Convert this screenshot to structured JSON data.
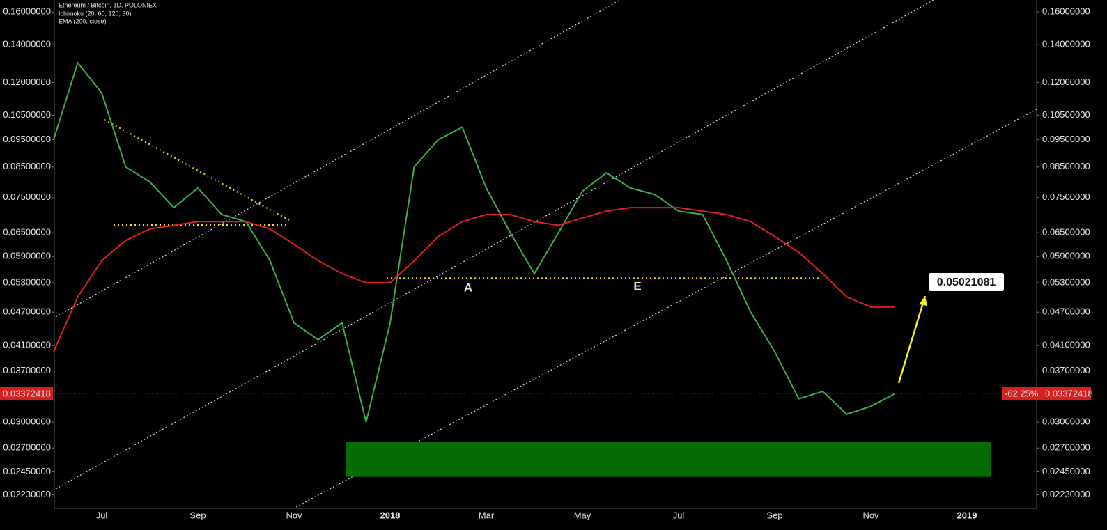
{
  "chart_data": {
    "type": "line",
    "indicators": [
      "Ichimoku (20, 60, 120, 30)"
    ],
    "log_scale": true,
    "grid": false,
    "categories": [
      null,
      null,
      "Jul",
      null,
      null,
      null,
      "Sep",
      null,
      null,
      null,
      "Nov",
      null,
      null,
      null,
      "2018",
      null,
      null,
      null,
      "Mar",
      null,
      null,
      null,
      "May",
      null,
      null,
      null,
      "Jul",
      null,
      null,
      null,
      "Sep",
      null,
      null,
      null,
      "Nov",
      null,
      null,
      null,
      "2019"
    ],
    "series": [
      {
        "name": "Ethereum / Bitcoin, 1D, POLONIEX",
        "color": "#3fae4a",
        "values": [
          0.095,
          0.13,
          0.115,
          0.085,
          0.08,
          0.072,
          0.078,
          0.07,
          0.068,
          0.058,
          0.045,
          0.042,
          0.045,
          0.03,
          0.045,
          0.085,
          0.095,
          0.1,
          0.078,
          0.065,
          0.055,
          0.065,
          0.077,
          0.083,
          0.078,
          0.076,
          0.071,
          0.07,
          0.058,
          0.047,
          0.04,
          0.033,
          0.034,
          0.031,
          0.032,
          0.0337,
          null,
          null,
          null
        ]
      },
      {
        "name": "EMA (200, close)",
        "color": "#e02020",
        "values": [
          0.04,
          0.05,
          0.058,
          0.063,
          0.066,
          0.067,
          0.068,
          0.068,
          0.068,
          0.066,
          0.062,
          0.058,
          0.055,
          0.053,
          0.053,
          0.058,
          0.064,
          0.068,
          0.07,
          0.07,
          0.068,
          0.067,
          0.069,
          0.071,
          0.072,
          0.072,
          0.072,
          0.071,
          0.07,
          0.068,
          0.064,
          0.06,
          0.055,
          0.05,
          0.048,
          0.048,
          null,
          null,
          null
        ]
      }
    ],
    "ylim": [
      0.0211,
      0.168
    ],
    "yticks": [
      {
        "value": 0.16,
        "label": "0.16000000"
      },
      {
        "value": 0.14,
        "label": "0.14000000"
      },
      {
        "value": 0.12,
        "label": "0.12000000"
      },
      {
        "value": 0.105,
        "label": "0.10500000"
      },
      {
        "value": 0.095,
        "label": "0.09500000"
      },
      {
        "value": 0.085,
        "label": "0.08500000"
      },
      {
        "value": 0.075,
        "label": "0.07500000"
      },
      {
        "value": 0.065,
        "label": "0.06500000"
      },
      {
        "value": 0.059,
        "label": "0.05900000"
      },
      {
        "value": 0.053,
        "label": "0.05300000"
      },
      {
        "value": 0.047,
        "label": "0.04700000"
      },
      {
        "value": 0.041,
        "label": "0.04100000"
      },
      {
        "value": 0.037,
        "label": "0.03700000"
      },
      {
        "value": 0.03,
        "label": "0.03000000"
      },
      {
        "value": 0.027,
        "label": "0.02700000"
      },
      {
        "value": 0.0245,
        "label": "0.02450000"
      },
      {
        "value": 0.0223,
        "label": "0.02230000"
      }
    ],
    "last_price": 0.03372418,
    "change": {
      "value": -62.25,
      "label": "-62.25%"
    },
    "target": 0.05021081,
    "support": 0.054,
    "support_labels": [
      "A",
      "E"
    ],
    "demand_zone": [
      0.024,
      0.0277
    ]
  }
}
